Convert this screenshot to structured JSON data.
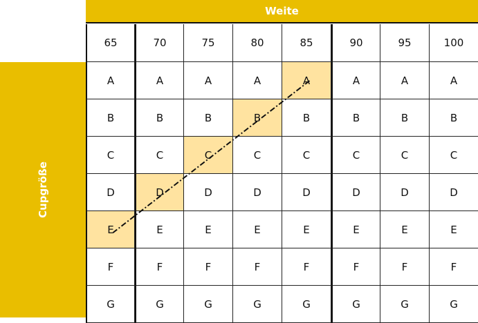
{
  "header": {
    "title": "Weite"
  },
  "side": {
    "title": "Cupgröße"
  },
  "colors": {
    "accent": "#E9BE00",
    "highlight": "#FFE3A0"
  },
  "table": {
    "widths": [
      "65",
      "70",
      "75",
      "80",
      "85",
      "90",
      "95",
      "100"
    ],
    "cups": [
      "A",
      "B",
      "C",
      "D",
      "E",
      "F",
      "G"
    ],
    "highlighted": [
      {
        "width": "85",
        "cup": "A"
      },
      {
        "width": "80",
        "cup": "B"
      },
      {
        "width": "75",
        "cup": "C"
      },
      {
        "width": "70",
        "cup": "D"
      },
      {
        "width": "65",
        "cup": "E"
      }
    ]
  }
}
